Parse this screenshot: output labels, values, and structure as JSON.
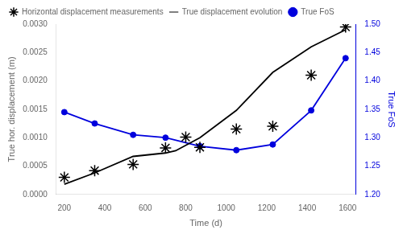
{
  "chart_data": {
    "type": "line",
    "xlabel": "Time (d)",
    "ylabel": "True hor. displacement (m)",
    "y2label": "True FoS",
    "series": [
      {
        "name": "True displacement evolution",
        "type": "line",
        "color": "#000000",
        "x": [
          200,
          350,
          540,
          700,
          750,
          870,
          1050,
          1230,
          1420,
          1590
        ],
        "values": [
          0.00018,
          0.00038,
          0.00067,
          0.00073,
          0.00077,
          0.001,
          0.00148,
          0.00215,
          0.0026,
          0.0029
        ]
      },
      {
        "name": "Horizontal displacement measurements",
        "type": "scatter",
        "marker": "star",
        "color": "#000000",
        "x": [
          200,
          350,
          540,
          700,
          800,
          870,
          1050,
          1230,
          1420,
          1590
        ],
        "values": [
          0.0003,
          0.00042,
          0.00053,
          0.00082,
          0.00101,
          0.00083,
          0.00115,
          0.0012,
          0.0021,
          0.00295
        ]
      },
      {
        "name": "True FoS",
        "type": "line",
        "marker": "circle",
        "color": "#0000dd",
        "axis": "y2",
        "x": [
          200,
          350,
          540,
          700,
          870,
          1050,
          1230,
          1420,
          1590
        ],
        "values": [
          1.345,
          1.325,
          1.305,
          1.3,
          1.285,
          1.278,
          1.288,
          1.348,
          1.44
        ]
      }
    ],
    "xlim": [
      160,
      1640
    ],
    "xticks": [
      200,
      400,
      600,
      800,
      1000,
      1200,
      1400,
      1600
    ],
    "ylim": [
      0.0,
      0.003
    ],
    "yticks": [
      {
        "value": 0.0,
        "label": "0.0000"
      },
      {
        "value": 0.0005,
        "label": "0.0005"
      },
      {
        "value": 0.001,
        "label": "0.0010"
      },
      {
        "value": 0.0015,
        "label": "0.0015"
      },
      {
        "value": 0.002,
        "label": "0.0020"
      },
      {
        "value": 0.0025,
        "label": "0.0025"
      },
      {
        "value": 0.003,
        "label": "0.0030"
      }
    ],
    "y2lim": [
      1.2,
      1.5
    ],
    "y2ticks": [
      {
        "value": 1.2,
        "label": "1.20"
      },
      1.25,
      {
        "value": 1.3,
        "label": "1.30"
      },
      1.35,
      {
        "value": 1.4,
        "label": "1.40"
      },
      1.45,
      {
        "value": 1.5,
        "label": "1.50"
      }
    ],
    "grid": false,
    "legend": "upper left"
  }
}
